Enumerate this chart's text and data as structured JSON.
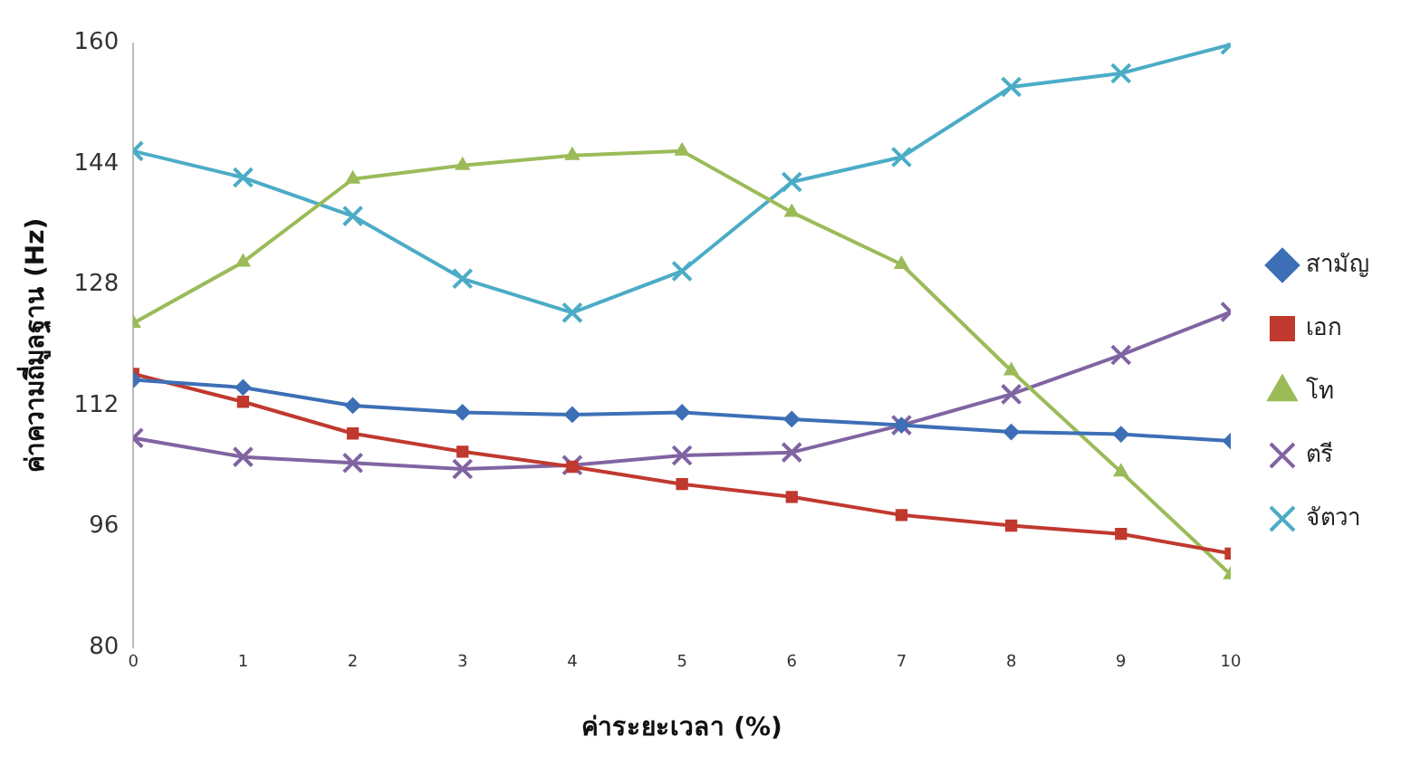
{
  "chart_data": {
    "type": "line",
    "xlabel": "ค่าระยะเวลา (%)",
    "ylabel": "ค่าความถี่มูลฐาน (Hz)",
    "x": [
      0,
      1,
      2,
      3,
      4,
      5,
      6,
      7,
      8,
      9,
      10
    ],
    "xlim": [
      0,
      10
    ],
    "xticks": [
      0,
      1,
      2,
      3,
      4,
      5,
      6,
      7,
      8,
      9,
      10
    ],
    "ylim": [
      80,
      160
    ],
    "yticks": [
      80,
      96,
      112,
      128,
      144,
      160
    ],
    "grid": false,
    "legend": "right",
    "line_style": "solid",
    "series": [
      {
        "name": "สามัญ",
        "color": "#3d6fb6",
        "marker": "diamond",
        "values": [
          115.4,
          114.4,
          112.0,
          111.1,
          110.8,
          111.1,
          110.2,
          109.4,
          108.5,
          108.2,
          107.3
        ]
      },
      {
        "name": "เอก",
        "color": "#c0392f",
        "marker": "square",
        "values": [
          116.2,
          112.5,
          108.3,
          105.9,
          103.9,
          101.6,
          99.9,
          97.5,
          96.1,
          95.0,
          92.4
        ]
      },
      {
        "name": "โท",
        "color": "#9bbb59",
        "marker": "triangle",
        "values": [
          122.9,
          131.0,
          142.0,
          143.8,
          145.1,
          145.7,
          137.6,
          130.7,
          116.6,
          103.2,
          89.6
        ]
      },
      {
        "name": "ตรี",
        "color": "#8064a2",
        "marker": "cross",
        "values": [
          107.7,
          105.2,
          104.4,
          103.6,
          104.1,
          105.4,
          105.8,
          109.4,
          113.5,
          118.7,
          124.4
        ]
      },
      {
        "name": "จัตวา",
        "color": "#4bacc6",
        "marker": "cross",
        "values": [
          145.7,
          142.2,
          137.1,
          128.8,
          124.3,
          129.8,
          141.6,
          144.9,
          154.2,
          156.0,
          159.8
        ]
      }
    ]
  }
}
